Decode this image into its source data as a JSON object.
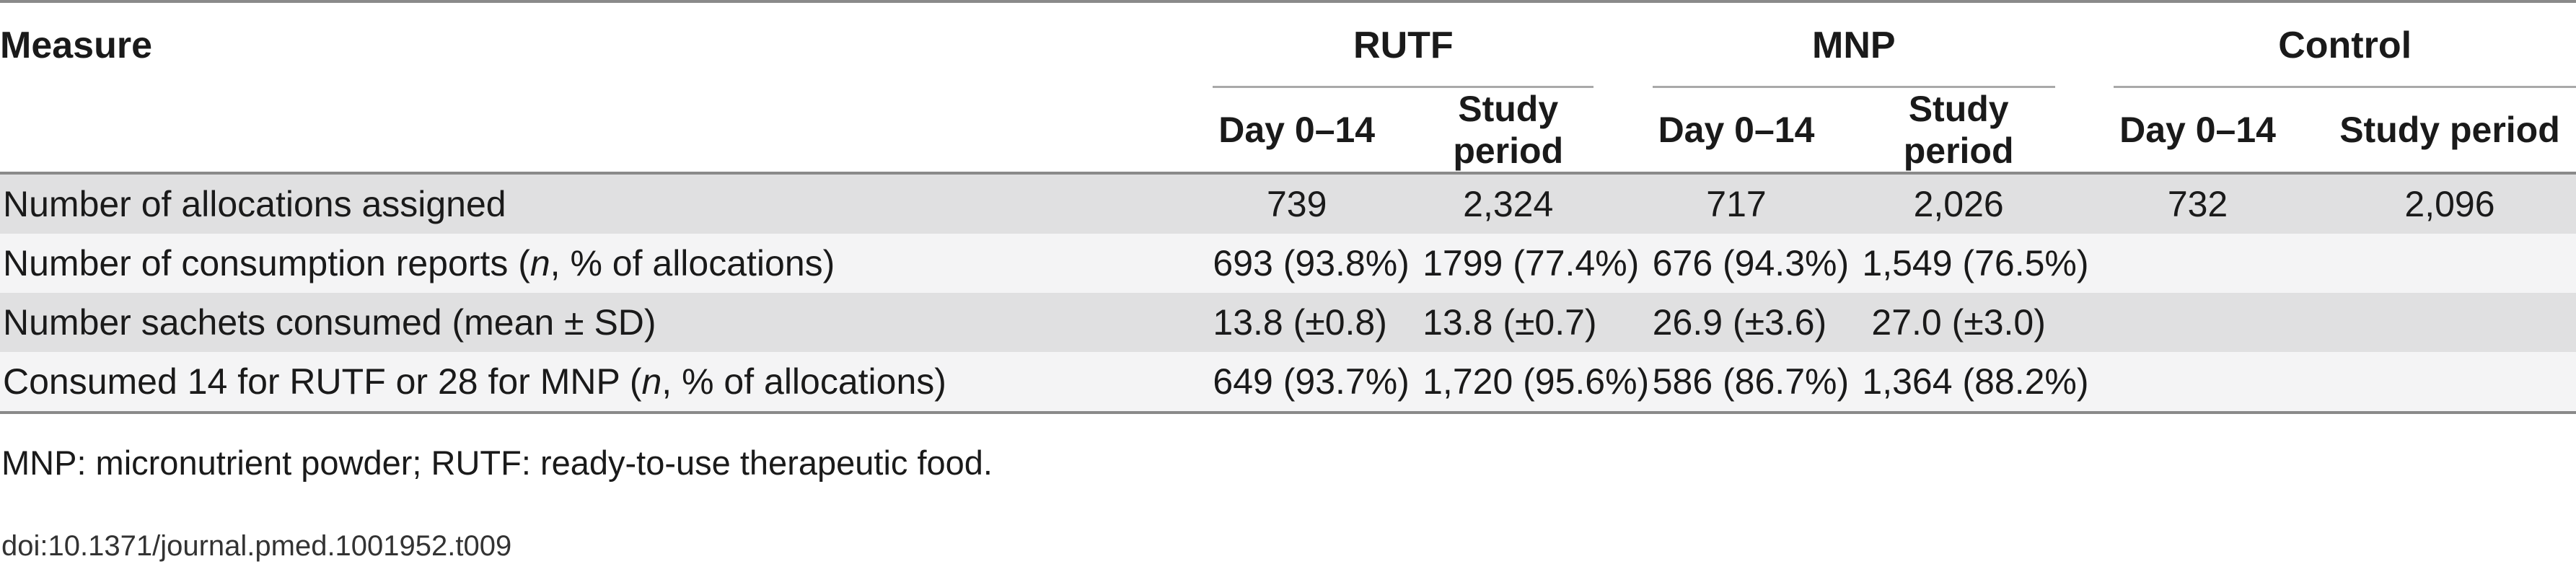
{
  "table": {
    "measure_header": "Measure",
    "groups": [
      "RUTF",
      "MNP",
      "Control"
    ],
    "subcolumns": [
      "Day 0–14",
      "Study period",
      "Day 0–14",
      "Study period",
      "Day 0–14",
      "Study period"
    ],
    "rows": [
      {
        "label_pre": "Number of allocations assigned",
        "label_italic": "",
        "label_post": "",
        "values": [
          "739",
          "2,324",
          "717",
          "2,026",
          "732",
          "2,096"
        ]
      },
      {
        "label_pre": "Number of consumption reports (",
        "label_italic": "n",
        "label_post": ", % of allocations)",
        "values": [
          "693 (93.8%)",
          "1799 (77.4%)",
          "676 (94.3%)",
          "1,549 (76.5%)",
          "",
          ""
        ]
      },
      {
        "label_pre": "Number sachets consumed (mean ± SD)",
        "label_italic": "",
        "label_post": "",
        "values": [
          "13.8 (±0.8)",
          "13.8 (±0.7)",
          "26.9 (±3.6)",
          "27.0 (±3.0)",
          "",
          ""
        ]
      },
      {
        "label_pre": "Consumed 14 for RUTF or 28 for MNP (",
        "label_italic": "n",
        "label_post": ", % of allocations)",
        "values": [
          "649 (93.7%)",
          "1,720 (95.6%)",
          "586 (86.7%)",
          "1,364 (88.2%)",
          "",
          ""
        ]
      }
    ]
  },
  "footnote": "MNP: micronutrient powder; RUTF: ready-to-use therapeutic food.",
  "doi": "doi:10.1371/journal.pmed.1001952.t009"
}
